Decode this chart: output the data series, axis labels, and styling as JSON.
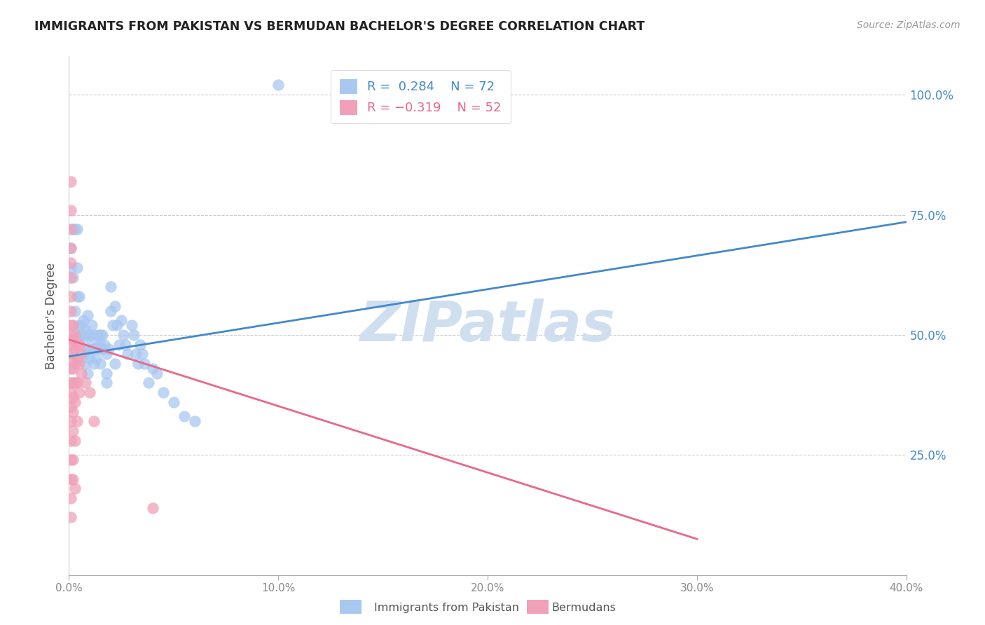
{
  "title": "IMMIGRANTS FROM PAKISTAN VS BERMUDAN BACHELOR'S DEGREE CORRELATION CHART",
  "source": "Source: ZipAtlas.com",
  "ylabel": "Bachelor's Degree",
  "xlim": [
    0.0,
    0.4
  ],
  "ylim": [
    0.0,
    1.08
  ],
  "xticklabels": [
    "0.0%",
    "10.0%",
    "20.0%",
    "30.0%",
    "40.0%"
  ],
  "xtick_vals": [
    0.0,
    0.1,
    0.2,
    0.3,
    0.4
  ],
  "yticklabels": [
    "25.0%",
    "50.0%",
    "75.0%",
    "100.0%"
  ],
  "ytick_vals": [
    0.25,
    0.5,
    0.75,
    1.0
  ],
  "legend_r_blue": "R =  0.284",
  "legend_n_blue": "N = 72",
  "legend_r_pink": "R = -0.319",
  "legend_n_pink": "N = 52",
  "blue_color": "#a8c8f0",
  "pink_color": "#f0a0b8",
  "blue_line_color": "#4488cc",
  "pink_line_color": "#e86888",
  "watermark": "ZIPatlas",
  "watermark_color": "#d0dff0",
  "blue_scatter": [
    [
      0.001,
      0.68
    ],
    [
      0.001,
      0.64
    ],
    [
      0.002,
      0.72
    ],
    [
      0.003,
      0.72
    ],
    [
      0.004,
      0.72
    ],
    [
      0.004,
      0.64
    ],
    [
      0.005,
      0.58
    ],
    [
      0.002,
      0.62
    ],
    [
      0.003,
      0.55
    ],
    [
      0.004,
      0.58
    ],
    [
      0.005,
      0.52
    ],
    [
      0.005,
      0.5
    ],
    [
      0.006,
      0.52
    ],
    [
      0.006,
      0.5
    ],
    [
      0.007,
      0.5
    ],
    [
      0.007,
      0.53
    ],
    [
      0.008,
      0.51
    ],
    [
      0.008,
      0.49
    ],
    [
      0.008,
      0.46
    ],
    [
      0.009,
      0.54
    ],
    [
      0.009,
      0.5
    ],
    [
      0.009,
      0.47
    ],
    [
      0.01,
      0.5
    ],
    [
      0.01,
      0.47
    ],
    [
      0.01,
      0.45
    ],
    [
      0.011,
      0.52
    ],
    [
      0.011,
      0.47
    ],
    [
      0.012,
      0.5
    ],
    [
      0.012,
      0.47
    ],
    [
      0.012,
      0.44
    ],
    [
      0.013,
      0.49
    ],
    [
      0.013,
      0.45
    ],
    [
      0.014,
      0.5
    ],
    [
      0.014,
      0.47
    ],
    [
      0.015,
      0.48
    ],
    [
      0.015,
      0.44
    ],
    [
      0.015,
      0.5
    ],
    [
      0.016,
      0.5
    ],
    [
      0.016,
      0.47
    ],
    [
      0.017,
      0.48
    ],
    [
      0.018,
      0.46
    ],
    [
      0.018,
      0.42
    ],
    [
      0.019,
      0.47
    ],
    [
      0.02,
      0.55
    ],
    [
      0.02,
      0.6
    ],
    [
      0.021,
      0.52
    ],
    [
      0.022,
      0.56
    ],
    [
      0.023,
      0.52
    ],
    [
      0.024,
      0.48
    ],
    [
      0.025,
      0.53
    ],
    [
      0.026,
      0.5
    ],
    [
      0.027,
      0.48
    ],
    [
      0.028,
      0.46
    ],
    [
      0.03,
      0.52
    ],
    [
      0.031,
      0.5
    ],
    [
      0.032,
      0.46
    ],
    [
      0.033,
      0.44
    ],
    [
      0.034,
      0.48
    ],
    [
      0.035,
      0.46
    ],
    [
      0.036,
      0.44
    ],
    [
      0.038,
      0.4
    ],
    [
      0.04,
      0.43
    ],
    [
      0.042,
      0.42
    ],
    [
      0.045,
      0.38
    ],
    [
      0.05,
      0.36
    ],
    [
      0.055,
      0.33
    ],
    [
      0.06,
      0.32
    ],
    [
      0.008,
      0.44
    ],
    [
      0.009,
      0.42
    ],
    [
      0.018,
      0.4
    ],
    [
      0.022,
      0.44
    ],
    [
      0.1,
      1.02
    ]
  ],
  "pink_scatter": [
    [
      0.001,
      0.82
    ],
    [
      0.001,
      0.76
    ],
    [
      0.001,
      0.72
    ],
    [
      0.001,
      0.68
    ],
    [
      0.001,
      0.65
    ],
    [
      0.001,
      0.62
    ],
    [
      0.001,
      0.58
    ],
    [
      0.001,
      0.55
    ],
    [
      0.001,
      0.52
    ],
    [
      0.001,
      0.5
    ],
    [
      0.001,
      0.48
    ],
    [
      0.001,
      0.45
    ],
    [
      0.001,
      0.43
    ],
    [
      0.001,
      0.4
    ],
    [
      0.001,
      0.38
    ],
    [
      0.001,
      0.35
    ],
    [
      0.001,
      0.32
    ],
    [
      0.001,
      0.28
    ],
    [
      0.001,
      0.24
    ],
    [
      0.001,
      0.2
    ],
    [
      0.001,
      0.16
    ],
    [
      0.001,
      0.12
    ],
    [
      0.002,
      0.52
    ],
    [
      0.002,
      0.49
    ],
    [
      0.002,
      0.46
    ],
    [
      0.002,
      0.43
    ],
    [
      0.002,
      0.4
    ],
    [
      0.002,
      0.37
    ],
    [
      0.002,
      0.34
    ],
    [
      0.002,
      0.3
    ],
    [
      0.002,
      0.24
    ],
    [
      0.002,
      0.2
    ],
    [
      0.003,
      0.5
    ],
    [
      0.003,
      0.47
    ],
    [
      0.003,
      0.44
    ],
    [
      0.003,
      0.4
    ],
    [
      0.003,
      0.36
    ],
    [
      0.003,
      0.28
    ],
    [
      0.003,
      0.18
    ],
    [
      0.004,
      0.48
    ],
    [
      0.004,
      0.45
    ],
    [
      0.004,
      0.4
    ],
    [
      0.004,
      0.32
    ],
    [
      0.005,
      0.48
    ],
    [
      0.005,
      0.44
    ],
    [
      0.005,
      0.38
    ],
    [
      0.006,
      0.46
    ],
    [
      0.006,
      0.42
    ],
    [
      0.008,
      0.4
    ],
    [
      0.04,
      0.14
    ],
    [
      0.01,
      0.38
    ],
    [
      0.012,
      0.32
    ]
  ],
  "blue_line_x": [
    0.0,
    0.4
  ],
  "blue_line_y": [
    0.455,
    0.735
  ],
  "pink_line_x": [
    0.0,
    0.3
  ],
  "pink_line_y": [
    0.49,
    0.075
  ],
  "figsize": [
    14.06,
    8.92
  ],
  "dpi": 100
}
